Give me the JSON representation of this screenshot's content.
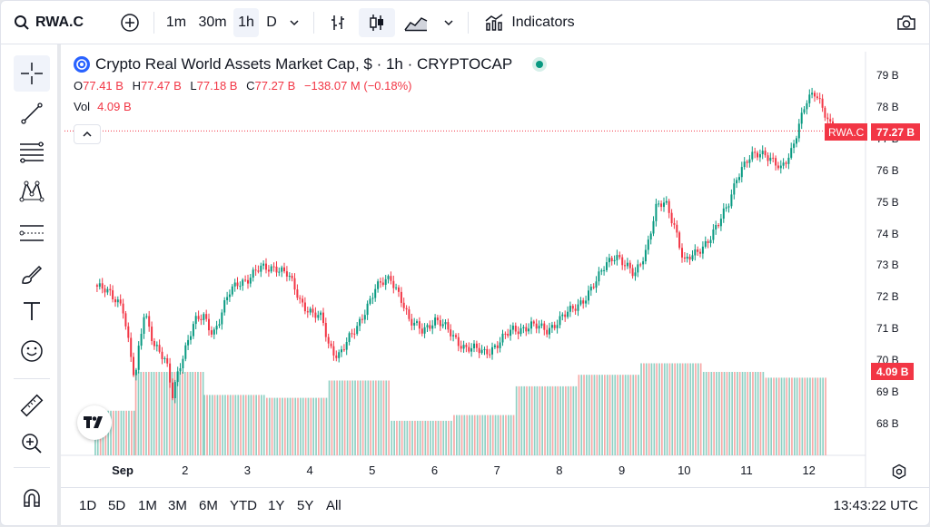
{
  "toolbar": {
    "symbol": "RWA.C",
    "intervals": [
      "1m",
      "30m",
      "1h",
      "D"
    ],
    "active_interval": "1h",
    "indicators_label": "Indicators"
  },
  "legend": {
    "title": "Crypto Real World Assets Market Cap, $ · 1h · CRYPTOCAP",
    "ohlc": {
      "o_label": "O",
      "o": "77.41 B",
      "h_label": "H",
      "h": "77.47 B",
      "l_label": "L",
      "l": "77.18 B",
      "c_label": "C",
      "c": "77.27 B",
      "change": "−138.07 M (−0.18%)"
    },
    "vol_label": "Vol",
    "vol_value": "4.09 B"
  },
  "price_axis": [
    "79 B",
    "78 B",
    "77 B",
    "76 B",
    "75 B",
    "74 B",
    "73 B",
    "72 B",
    "71 B",
    "70 B",
    "69 B",
    "68 B"
  ],
  "time_axis": [
    "Sep",
    "2",
    "3",
    "4",
    "5",
    "6",
    "7",
    "8",
    "9",
    "10",
    "11",
    "12"
  ],
  "badges": {
    "symbol": "RWA.C",
    "price": "77.27 B",
    "volume": "4.09 B"
  },
  "ranges": [
    "1D",
    "5D",
    "1M",
    "3M",
    "6M",
    "YTD",
    "1Y",
    "5Y",
    "All"
  ],
  "clock": "13:43:22 UTC",
  "colors": {
    "up": "#089981",
    "down": "#f23645",
    "vol_up": "#8fd1c4",
    "vol_down": "#f7a9a7"
  },
  "chart_data": {
    "type": "candlestick",
    "x_unit": "day (Sep = Sep 1, 12 = Sep 12, hourly candles)",
    "ylim": [
      67.3,
      79.2
    ],
    "price_line": 77.27,
    "close_path": [
      [
        0.55,
        72.4
      ],
      [
        0.8,
        72.1
      ],
      [
        1.0,
        71.8
      ],
      [
        1.1,
        70.5
      ],
      [
        1.2,
        69.3
      ],
      [
        1.25,
        70.2
      ],
      [
        1.35,
        71.6
      ],
      [
        1.5,
        70.6
      ],
      [
        1.7,
        69.9
      ],
      [
        1.8,
        68.9
      ],
      [
        1.9,
        69.8
      ],
      [
        2.0,
        70.4
      ],
      [
        2.15,
        71.2
      ],
      [
        2.3,
        71.4
      ],
      [
        2.45,
        70.9
      ],
      [
        2.55,
        71.3
      ],
      [
        2.7,
        72.1
      ],
      [
        2.85,
        72.5
      ],
      [
        3.0,
        72.6
      ],
      [
        3.2,
        72.9
      ],
      [
        3.45,
        73.0
      ],
      [
        3.65,
        72.7
      ],
      [
        3.85,
        71.9
      ],
      [
        4.05,
        71.5
      ],
      [
        4.2,
        71.3
      ],
      [
        4.3,
        70.5
      ],
      [
        4.45,
        70.2
      ],
      [
        4.6,
        70.6
      ],
      [
        4.75,
        71.0
      ],
      [
        4.9,
        71.7
      ],
      [
        5.05,
        72.3
      ],
      [
        5.3,
        72.6
      ],
      [
        5.45,
        72.1
      ],
      [
        5.6,
        71.2
      ],
      [
        5.8,
        71.0
      ],
      [
        6.0,
        71.3
      ],
      [
        6.2,
        71.0
      ],
      [
        6.5,
        70.4
      ],
      [
        6.8,
        70.3
      ],
      [
        7.0,
        70.5
      ],
      [
        7.25,
        71.0
      ],
      [
        7.55,
        71.1
      ],
      [
        7.8,
        71.0
      ],
      [
        8.0,
        71.3
      ],
      [
        8.2,
        71.6
      ],
      [
        8.4,
        72.0
      ],
      [
        8.6,
        72.5
      ],
      [
        8.75,
        73.1
      ],
      [
        8.9,
        73.4
      ],
      [
        9.05,
        73.0
      ],
      [
        9.2,
        72.7
      ],
      [
        9.4,
        73.6
      ],
      [
        9.55,
        74.8
      ],
      [
        9.7,
        75.0
      ],
      [
        9.85,
        74.3
      ],
      [
        10.0,
        73.1
      ],
      [
        10.2,
        73.4
      ],
      [
        10.4,
        73.9
      ],
      [
        10.55,
        74.3
      ],
      [
        10.7,
        74.9
      ],
      [
        10.85,
        75.9
      ],
      [
        11.0,
        76.3
      ],
      [
        11.15,
        76.5
      ],
      [
        11.3,
        76.6
      ],
      [
        11.45,
        76.3
      ],
      [
        11.55,
        76.0
      ],
      [
        11.7,
        76.5
      ],
      [
        11.85,
        77.6
      ],
      [
        11.95,
        78.2
      ],
      [
        12.1,
        78.4
      ],
      [
        12.25,
        77.9
      ],
      [
        12.4,
        77.3
      ]
    ],
    "volume_steps": [
      [
        0.55,
        1.2,
        1.55
      ],
      [
        1.2,
        2.3,
        2.9
      ],
      [
        2.3,
        3.3,
        2.1
      ],
      [
        3.3,
        4.3,
        2.0
      ],
      [
        4.3,
        5.3,
        2.6
      ],
      [
        5.3,
        6.3,
        1.2
      ],
      [
        6.3,
        7.3,
        1.4
      ],
      [
        7.3,
        8.3,
        2.4
      ],
      [
        8.3,
        9.3,
        2.8
      ],
      [
        9.3,
        10.3,
        3.2
      ],
      [
        10.3,
        11.3,
        2.9
      ],
      [
        11.3,
        12.3,
        2.7
      ]
    ],
    "volume_ylim": [
      0,
      3.5
    ]
  }
}
